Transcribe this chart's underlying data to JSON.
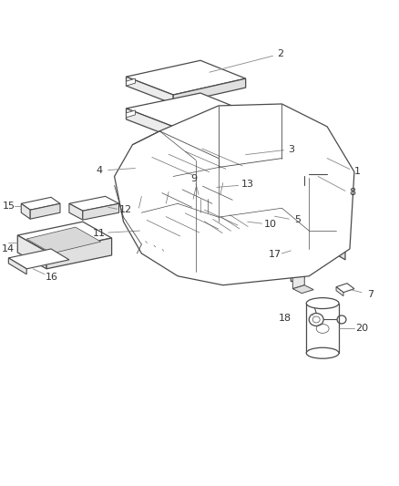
{
  "background_color": "#ffffff",
  "line_color": "#4a4a4a",
  "label_color": "#333333",
  "fig_width": 4.38,
  "fig_height": 5.33,
  "dpi": 100
}
